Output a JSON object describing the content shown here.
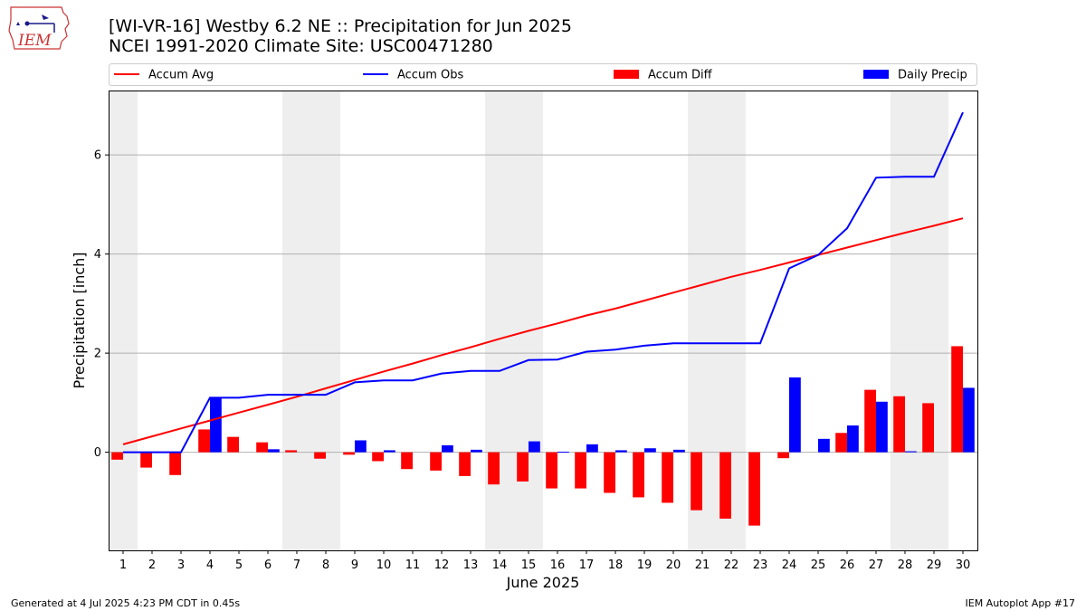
{
  "title_line1": "[WI-VR-16] Westby 6.2 NE :: Precipitation for Jun 2025",
  "title_line2": "NCEI 1991-2020 Climate Site: USC00471280",
  "logo_text": "IEM",
  "footer_left": "Generated at 4 Jul 2025 4:23 PM CDT in 0.45s",
  "footer_right": "IEM Autoplot App #17",
  "colors": {
    "avg": "#ff0000",
    "obs": "#0000ff",
    "diff": "#ff0000",
    "daily": "#0000ff",
    "weekend": "#eeeeee",
    "grid": "#b0b0b0"
  },
  "chart_data": {
    "type": "bar",
    "xlabel": "June 2025",
    "ylabel": "Precipitation [inch]",
    "xlim": [
      0.5,
      30.5
    ],
    "ylim": [
      -1.98,
      7.3
    ],
    "yticks": [
      0,
      2,
      4,
      6
    ],
    "grid": "horizontal",
    "legend_placement": "top",
    "legend": [
      "Accum Avg",
      "Accum Obs",
      "Accum Diff",
      "Daily Precip"
    ],
    "x": [
      1,
      2,
      3,
      4,
      5,
      6,
      7,
      8,
      9,
      10,
      11,
      12,
      13,
      14,
      15,
      16,
      17,
      18,
      19,
      20,
      21,
      22,
      23,
      24,
      25,
      26,
      27,
      28,
      29,
      30
    ],
    "shaded_days": [
      [
        0.5,
        1.5
      ],
      [
        6.5,
        8.5
      ],
      [
        13.5,
        15.5
      ],
      [
        20.5,
        22.5
      ],
      [
        27.5,
        29.5
      ]
    ],
    "series": [
      {
        "name": "Accum Avg",
        "kind": "line",
        "values": [
          0.16,
          0.32,
          0.48,
          0.64,
          0.8,
          0.96,
          1.12,
          1.29,
          1.46,
          1.63,
          1.79,
          1.96,
          2.12,
          2.29,
          2.45,
          2.6,
          2.76,
          2.9,
          3.06,
          3.22,
          3.38,
          3.54,
          3.68,
          3.83,
          3.98,
          4.13,
          4.28,
          4.43,
          4.57,
          4.72
        ]
      },
      {
        "name": "Accum Obs",
        "kind": "line",
        "values": [
          0.0,
          0.0,
          0.0,
          1.1,
          1.1,
          1.16,
          1.16,
          1.16,
          1.41,
          1.45,
          1.45,
          1.59,
          1.64,
          1.64,
          1.86,
          1.87,
          2.03,
          2.07,
          2.15,
          2.2,
          2.2,
          2.2,
          2.2,
          3.71,
          3.98,
          4.52,
          5.54,
          5.56,
          5.56,
          6.86
        ]
      },
      {
        "name": "Accum Diff",
        "kind": "bar",
        "values": [
          -0.15,
          -0.31,
          -0.46,
          0.46,
          0.31,
          0.2,
          0.04,
          -0.13,
          -0.05,
          -0.18,
          -0.34,
          -0.37,
          -0.48,
          -0.65,
          -0.59,
          -0.73,
          -0.73,
          -0.82,
          -0.91,
          -1.02,
          -1.17,
          -1.34,
          -1.48,
          -0.12,
          0.0,
          0.39,
          1.26,
          1.13,
          0.99,
          2.14
        ]
      },
      {
        "name": "Daily Precip",
        "kind": "bar",
        "values": [
          0.0,
          0.0,
          0.0,
          1.1,
          0.0,
          0.06,
          0.0,
          0.0,
          0.24,
          0.04,
          0.0,
          0.14,
          0.05,
          0.0,
          0.22,
          0.01,
          0.16,
          0.04,
          0.08,
          0.05,
          0.0,
          0.0,
          0.0,
          1.51,
          0.27,
          0.54,
          1.02,
          0.02,
          0.0,
          1.3
        ]
      }
    ]
  }
}
